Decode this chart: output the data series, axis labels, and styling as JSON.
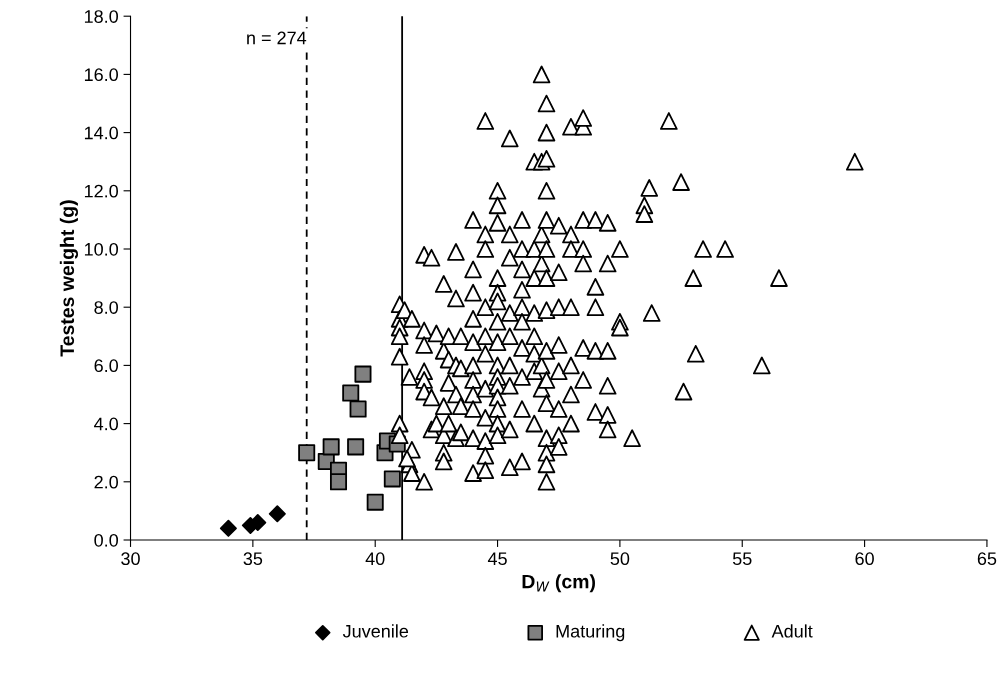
{
  "chart_data": {
    "type": "scatter",
    "xlabel": "D$_{W}$ (cm)",
    "ylabel": "Testes weight (g)",
    "xlim": [
      30,
      65
    ],
    "xticks": [
      30,
      35,
      40,
      45,
      50,
      55,
      60,
      65
    ],
    "ylim": [
      0,
      18
    ],
    "yticks": [
      {
        "value": 0,
        "label": "0.0"
      },
      {
        "value": 2,
        "label": "2.0"
      },
      {
        "value": 4,
        "label": "4.0"
      },
      {
        "value": 6,
        "label": "6.0"
      },
      {
        "value": 8,
        "label": "8.0"
      },
      {
        "value": 10,
        "label": "10.0"
      },
      {
        "value": 12,
        "label": "12.0"
      },
      {
        "value": 14,
        "label": "14.0"
      },
      {
        "value": 16,
        "label": "16.0"
      },
      {
        "value": 18,
        "label": "18.0"
      }
    ],
    "grid": false,
    "legend": "bottom",
    "annotations": [
      {
        "text": "n = 274",
        "x": 37.2,
        "y": 17.2
      }
    ],
    "ref_lines": [
      {
        "axis": "x",
        "value": 37.2,
        "line_style": "dashed",
        "color": "#000000"
      },
      {
        "axis": "x",
        "value": 41.1,
        "line_style": "solid",
        "color": "#000000"
      }
    ],
    "series": [
      {
        "name": "Juvenile",
        "color": "#000000",
        "marker": "diamond",
        "x": [
          34.0,
          34.9,
          35.2,
          36.0
        ],
        "values": [
          0.4,
          0.5,
          0.6,
          0.9
        ]
      },
      {
        "name": "Maturing",
        "color": "#808080",
        "marker": "square",
        "x": [
          37.2,
          38.0,
          38.2,
          38.5,
          38.5,
          39.0,
          39.2,
          39.3,
          39.5,
          40.0,
          40.4,
          40.5,
          40.7,
          40.9
        ],
        "values": [
          3.0,
          2.7,
          3.2,
          2.4,
          2.0,
          5.05,
          3.2,
          4.5,
          5.7,
          1.3,
          3.0,
          3.4,
          2.1,
          3.3
        ]
      },
      {
        "name": "Adult",
        "color": "#ffffff",
        "marker": "triangle",
        "x": [
          41,
          41,
          41,
          41,
          41,
          41,
          41,
          41.2,
          41.5,
          41.4,
          41.5,
          41.4,
          41.5,
          41.3,
          42,
          42,
          42,
          42,
          42,
          42,
          42,
          42.3,
          42.3,
          42.3,
          42.5,
          42.5,
          42.8,
          42.8,
          42.8,
          42.8,
          42.8,
          42.8,
          43,
          43,
          43,
          43,
          43.3,
          43.3,
          43.3,
          43.3,
          43.3,
          43.5,
          43.5,
          43.5,
          43.5,
          44,
          44,
          44,
          44,
          44,
          44,
          44,
          44,
          44,
          44,
          44,
          44.5,
          44.5,
          44.5,
          44.5,
          44.5,
          44.5,
          44.5,
          44.5,
          44.5,
          44.5,
          44.5,
          45,
          45,
          45,
          45,
          45,
          45,
          45,
          45,
          45,
          45,
          45,
          45,
          45,
          45,
          45,
          45.5,
          45.5,
          45.5,
          45.5,
          45.5,
          45.5,
          45.5,
          45.5,
          45.5,
          46,
          46,
          46,
          46,
          46,
          46,
          46,
          46,
          46,
          46,
          46.5,
          46.5,
          46.5,
          46.5,
          46.5,
          46.5,
          46.5,
          46.5,
          46.8,
          46.8,
          46.8,
          46.8,
          46.8,
          46.8,
          47,
          47,
          47,
          47,
          47,
          47,
          47,
          47,
          47,
          47,
          47,
          47,
          47,
          47,
          47,
          47.5,
          47.5,
          47.5,
          47.5,
          47.5,
          47.5,
          47.5,
          47.5,
          48,
          48,
          48,
          48,
          48,
          48,
          48,
          48.5,
          48.5,
          48.5,
          48.5,
          48.5,
          48.5,
          48.5,
          49,
          49,
          49,
          49,
          49,
          49.5,
          49.5,
          49.5,
          49.5,
          49.5,
          49.5,
          50,
          50,
          50,
          50.5,
          51,
          51,
          51.2,
          51.3,
          52,
          52.5,
          52.6,
          53,
          53.1,
          53.4,
          54.3,
          55.8,
          56.5,
          59.6
        ],
        "values": [
          8.1,
          7.6,
          7.3,
          7.0,
          6.3,
          4.0,
          3.6,
          7.9,
          7.6,
          5.6,
          3.1,
          2.6,
          2.3,
          2.8,
          9.8,
          7.2,
          6.7,
          5.8,
          5.5,
          5.1,
          2.0,
          9.7,
          4.9,
          3.8,
          7.1,
          4.0,
          8.8,
          6.5,
          4.6,
          3.6,
          3.0,
          2.7,
          7.0,
          6.2,
          5.4,
          4.0,
          9.9,
          8.3,
          6.0,
          5.0,
          3.5,
          7.0,
          5.9,
          4.6,
          3.7,
          11.0,
          9.3,
          8.5,
          7.6,
          6.8,
          6.0,
          5.5,
          5.0,
          4.5,
          3.5,
          2.3,
          14.4,
          10.5,
          10.0,
          8.0,
          7.0,
          6.4,
          5.2,
          4.2,
          3.4,
          2.9,
          2.4,
          12.0,
          11.5,
          10.9,
          9.0,
          8.5,
          8.2,
          7.5,
          6.8,
          6.0,
          5.6,
          5.3,
          4.9,
          4.5,
          4.0,
          3.6,
          13.8,
          10.5,
          9.7,
          7.8,
          7.0,
          6.0,
          5.3,
          3.8,
          2.5,
          11.0,
          10.0,
          9.3,
          8.6,
          8.0,
          7.5,
          6.6,
          5.6,
          4.5,
          2.7,
          13.0,
          10.0,
          9.0,
          7.8,
          7.0,
          6.4,
          5.8,
          4.0,
          16.0,
          13.0,
          10.5,
          9.5,
          6.0,
          5.2,
          15.0,
          14.0,
          13.1,
          12.0,
          11.0,
          10.0,
          9.0,
          7.9,
          6.5,
          5.5,
          4.7,
          3.5,
          3.0,
          2.6,
          2.0,
          10.8,
          9.2,
          8.0,
          6.7,
          5.8,
          4.5,
          3.6,
          3.2,
          14.2,
          10.5,
          10.0,
          8.0,
          6.0,
          5.0,
          4.0,
          14.2,
          14.5,
          11.0,
          10.0,
          9.5,
          6.6,
          5.5,
          11.0,
          8.7,
          8.0,
          6.5,
          4.4,
          10.9,
          9.5,
          6.5,
          5.3,
          4.3,
          3.8,
          10.0,
          7.5,
          7.3,
          3.5,
          11.5,
          11.2,
          12.1,
          7.8,
          14.4,
          12.3,
          5.1,
          9.0,
          6.4,
          10.0,
          10.0,
          6.0,
          9.0,
          13.0
        ]
      }
    ]
  }
}
